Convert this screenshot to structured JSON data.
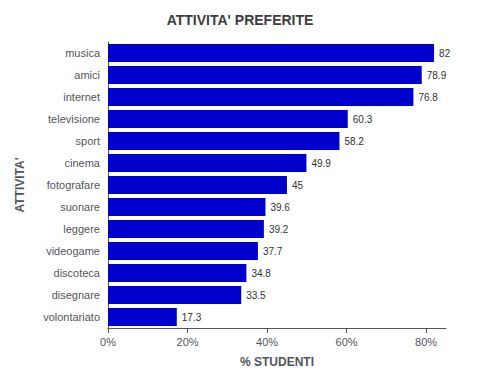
{
  "chart_data": {
    "type": "bar",
    "orientation": "horizontal",
    "title": "ATTIVITA' PREFERITE",
    "categories": [
      "musica",
      "amici",
      "internet",
      "televisione",
      "sport",
      "cinema",
      "fotografare",
      "suonare",
      "leggere",
      "videogame",
      "discoteca",
      "disegnare",
      "volontariato"
    ],
    "values": [
      82,
      78.9,
      76.8,
      60.3,
      58.2,
      49.9,
      45,
      39.6,
      39.2,
      37.7,
      34.8,
      33.5,
      17.3
    ],
    "color": "#0000CC",
    "xlabel": "% STUDENTI",
    "ylabel": "ATTIVITA'",
    "xlim": [
      0,
      85
    ],
    "xticks": [
      {
        "value": 0,
        "label": "0%"
      },
      {
        "value": 20,
        "label": "20%"
      },
      {
        "value": 40,
        "label": "40%"
      },
      {
        "value": 60,
        "label": "60%"
      },
      {
        "value": 80,
        "label": "80%"
      }
    ],
    "data_labels": true,
    "grid": false
  }
}
